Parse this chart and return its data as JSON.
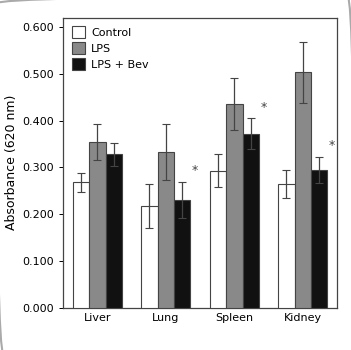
{
  "categories": [
    "Liver",
    "Lung",
    "Spleen",
    "Kidney"
  ],
  "series": {
    "Control": [
      0.268,
      0.218,
      0.293,
      0.264
    ],
    "LPS": [
      0.354,
      0.333,
      0.435,
      0.503
    ],
    "LPS + Bev": [
      0.328,
      0.231,
      0.372,
      0.295
    ]
  },
  "errors": {
    "Control": [
      0.02,
      0.047,
      0.035,
      0.03
    ],
    "LPS": [
      0.038,
      0.06,
      0.055,
      0.065
    ],
    "LPS + Bev": [
      0.025,
      0.038,
      0.033,
      0.028
    ]
  },
  "asterisk_cats": [
    "Lung",
    "Spleen",
    "Kidney"
  ],
  "asterisk_series": "LPS + Bev",
  "colors": {
    "Control": "#ffffff",
    "LPS": "#898989",
    "LPS + Bev": "#111111"
  },
  "bar_edge_color": "#444444",
  "ylabel": "Absorbance (620 nm)",
  "ylim": [
    0.0,
    0.62
  ],
  "yticks": [
    0.0,
    0.1,
    0.2,
    0.3,
    0.4,
    0.5,
    0.6
  ],
  "legend_order": [
    "Control",
    "LPS",
    "LPS + Bev"
  ],
  "bar_width": 0.24,
  "capsize": 3,
  "elinewidth": 0.9,
  "ecolor": "#444444",
  "tick_fontsize": 8,
  "ylabel_fontsize": 9,
  "legend_fontsize": 8
}
